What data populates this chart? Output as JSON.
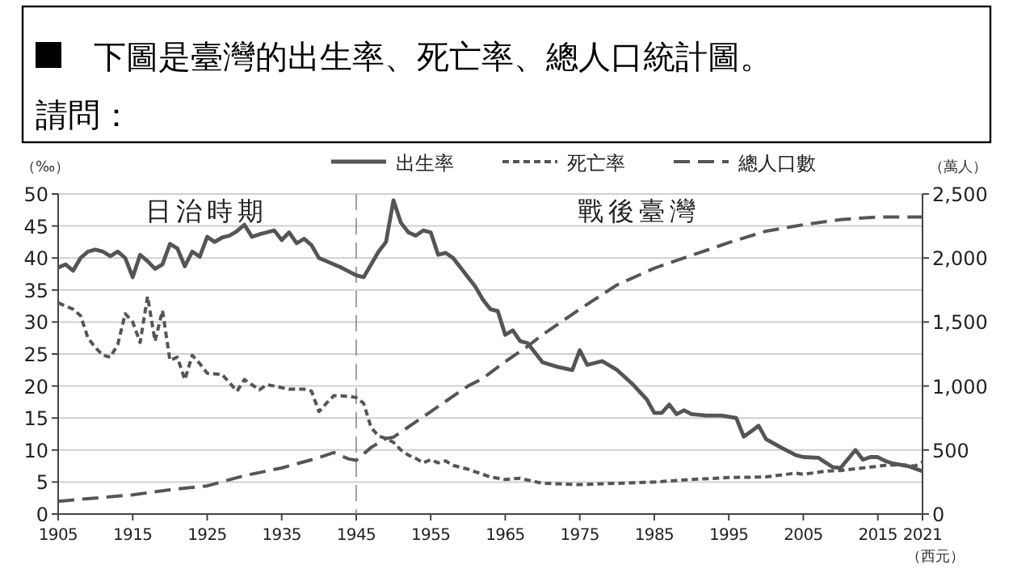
{
  "chart_data": {
    "type": "line",
    "title": "下圖是臺灣的出生率、死亡率、總人口統計圖。",
    "subtitle": "請問：",
    "ylabel": "（‰）",
    "y2label": "（萬人）",
    "xlabel": "（西元）",
    "xlim": [
      1905,
      2021
    ],
    "xticks": [
      1905,
      1915,
      1925,
      1935,
      1945,
      1955,
      1965,
      1975,
      1985,
      1995,
      2005,
      2015,
      2021
    ],
    "ylim": [
      0,
      50
    ],
    "yticks": [
      0,
      5,
      10,
      15,
      20,
      25,
      30,
      35,
      40,
      45,
      50
    ],
    "y2lim": [
      0,
      2500
    ],
    "y2ticks": [
      0,
      500,
      {
        "value": 1000,
        "label": "1,000"
      },
      {
        "value": 1500,
        "label": "1,500"
      },
      {
        "value": 2000,
        "label": "2,000"
      },
      {
        "value": 2500,
        "label": "2,500"
      }
    ],
    "grid": "y",
    "legend": "top",
    "marker": "none",
    "ref_lines": [
      {
        "axis": "x",
        "value": 1945,
        "line_style": "dashed",
        "color": "#888888"
      }
    ],
    "annotations": [
      "日治時期",
      "戰後臺灣"
    ],
    "series": [
      {
        "name": "出生率",
        "color": "#555555",
        "line_style": "solid",
        "x": [
          1905,
          1906,
          1907,
          1908,
          1909,
          1910,
          1911,
          1912,
          1913,
          1914,
          1915,
          1916,
          1917,
          1918,
          1919,
          1920,
          1921,
          1922,
          1923,
          1924,
          1925,
          1926,
          1927,
          1928,
          1929,
          1930,
          1931,
          1932,
          1933,
          1934,
          1935,
          1936,
          1937,
          1938,
          1939,
          1940,
          1941,
          1943,
          1945,
          1946,
          1947,
          1948,
          1949,
          1950,
          1951,
          1952,
          1953,
          1954,
          1955,
          1956,
          1957,
          1958,
          1959,
          1960,
          1961,
          1962,
          1963,
          1964,
          1965,
          1966,
          1967,
          1968,
          1970,
          1972,
          1974,
          1975,
          1976,
          1978,
          1980,
          1982,
          1984,
          1985,
          1986,
          1987,
          1988,
          1989,
          1990,
          1992,
          1994,
          1996,
          1997,
          1998,
          1999,
          2000,
          2002,
          2004,
          2005,
          2007,
          2009,
          2010,
          2012,
          2013,
          2014,
          2015,
          2016,
          2017,
          2019,
          2020,
          2021
        ],
        "values": [
          38.5,
          39,
          38,
          40,
          41,
          41.3,
          41,
          40.3,
          41,
          40,
          37,
          40.5,
          39.5,
          38.3,
          39,
          42.2,
          41.5,
          38.7,
          41,
          40.2,
          43.3,
          42.5,
          43.2,
          43.5,
          44.2,
          45.2,
          43.3,
          43.7,
          44,
          44.3,
          42.8,
          44,
          42.3,
          43,
          42,
          40,
          39.5,
          38.5,
          37.3,
          37,
          39,
          41,
          42.5,
          49,
          45.5,
          44,
          43.5,
          44.3,
          44,
          40.5,
          40.8,
          40,
          38.5,
          37,
          35.5,
          33.5,
          32,
          31.7,
          28,
          28.7,
          27,
          26.7,
          23.7,
          23,
          22.5,
          25.6,
          23.3,
          23.9,
          22.5,
          20.4,
          17.9,
          15.8,
          15.8,
          17.1,
          15.6,
          16.2,
          15.6,
          15.4,
          15.4,
          15,
          12.1,
          12.9,
          13.8,
          11.7,
          10.4,
          9.2,
          8.9,
          8.8,
          7.3,
          7.2,
          10,
          8.5,
          8.9,
          8.9,
          8.3,
          7.9,
          7.5,
          7.1,
          6.7
        ]
      },
      {
        "name": "死亡率",
        "color": "#555555",
        "line_style": "dotted",
        "x": [
          1905,
          1907,
          1908,
          1909,
          1910,
          1911,
          1912,
          1913,
          1914,
          1915,
          1916,
          1917,
          1918,
          1919,
          1920,
          1921,
          1922,
          1923,
          1924,
          1925,
          1927,
          1928,
          1929,
          1930,
          1931,
          1932,
          1933,
          1934,
          1936,
          1938,
          1939,
          1940,
          1941,
          1942,
          1944,
          1945,
          1946,
          1947,
          1948,
          1949,
          1950,
          1951,
          1952,
          1953,
          1954,
          1955,
          1956,
          1957,
          1958,
          1960,
          1962,
          1963,
          1965,
          1967,
          1968,
          1970,
          1975,
          1985,
          1990,
          1995,
          2000,
          2004,
          2005,
          2008,
          2010,
          2013,
          2016,
          2018,
          2020,
          2021
        ],
        "values": [
          33,
          32,
          31,
          27.5,
          26,
          24.8,
          24.5,
          26.5,
          31.3,
          30,
          26.8,
          34,
          27,
          31.8,
          24,
          24.5,
          21,
          24.8,
          23.5,
          22,
          21.8,
          20.5,
          19.2,
          21,
          20.2,
          19.4,
          20.2,
          20,
          19.5,
          19.5,
          19.2,
          16,
          17.3,
          18.5,
          18.4,
          18.2,
          17.3,
          13.5,
          12.2,
          11.8,
          11.2,
          10,
          9.2,
          8.7,
          8,
          8.5,
          8,
          8.3,
          7.6,
          7,
          6.2,
          5.8,
          5.4,
          5.6,
          5.3,
          4.8,
          4.6,
          5,
          5.4,
          5.7,
          5.8,
          6.4,
          6.2,
          6.7,
          6.8,
          7.2,
          7.6,
          7.7,
          7.5,
          8.1
        ]
      },
      {
        "name": "總人口數",
        "color": "#555555",
        "line_style": "dashed",
        "axis": "y2",
        "x": [
          1905,
          1915,
          1920,
          1925,
          1930,
          1935,
          1940,
          1942,
          1944,
          1945,
          1947,
          1949,
          1950,
          1955,
          1960,
          1962,
          1965,
          1968,
          1970,
          1975,
          1980,
          1985,
          1990,
          1995,
          2000,
          2005,
          2010,
          2015,
          2021
        ],
        "values": [
          100,
          150,
          190,
          220,
          300,
          360,
          440,
          480,
          430,
          420,
          520,
          590,
          600,
          800,
          1000,
          1060,
          1190,
          1310,
          1400,
          1600,
          1790,
          1920,
          2020,
          2120,
          2210,
          2260,
          2300,
          2320,
          2320
        ]
      }
    ]
  }
}
